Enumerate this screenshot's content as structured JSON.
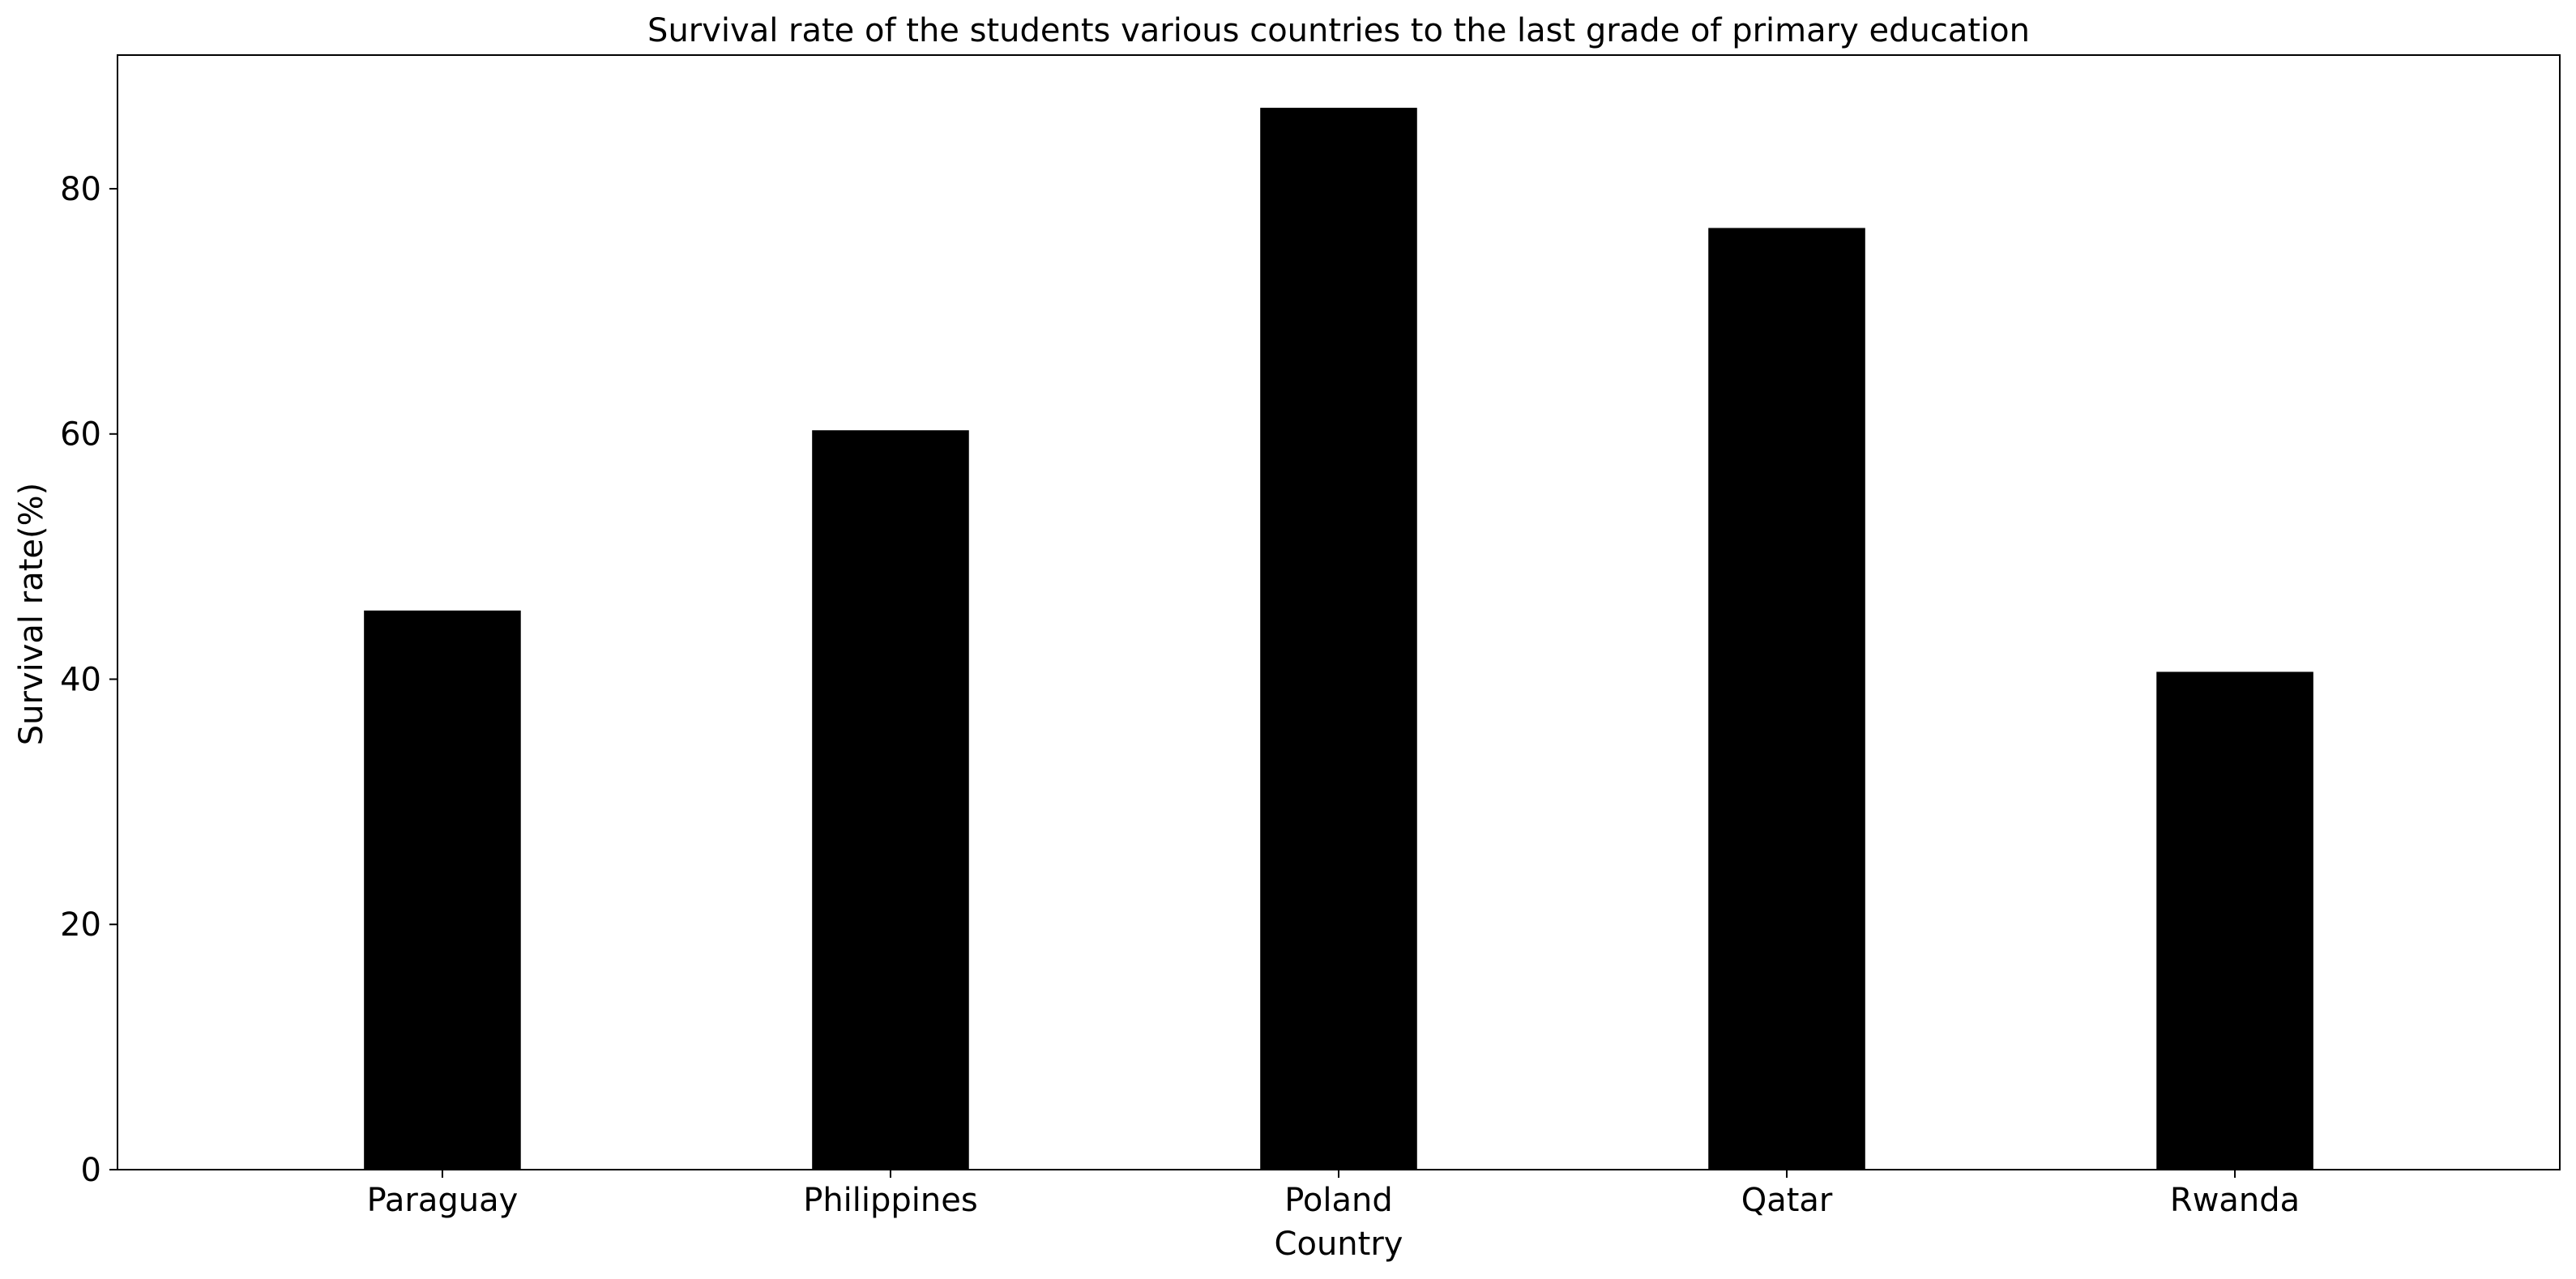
{
  "chart_data": {
    "type": "bar",
    "title": "Survival rate of the students various countries to the last grade of primary education",
    "xlabel": "Country",
    "ylabel": "Survival rate(%)",
    "categories": [
      "Paraguay",
      "Philippines",
      "Poland",
      "Qatar",
      "Rwanda"
    ],
    "values": [
      45.6,
      60.3,
      86.6,
      76.8,
      40.6
    ],
    "ylim": [
      0,
      90.9
    ],
    "yticks": [
      0,
      20,
      40,
      60,
      80
    ],
    "bar_color": "#000000",
    "grid": false,
    "legend": "none"
  }
}
